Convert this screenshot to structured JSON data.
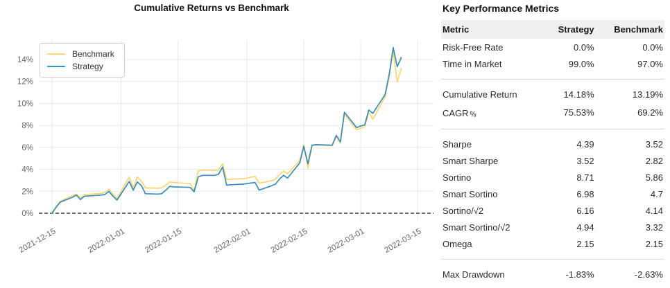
{
  "chart": {
    "title": "Cumulative Returns vs Benchmark",
    "legend": [
      {
        "label": "Benchmark",
        "color": "#fcd66a"
      },
      {
        "label": "Strategy",
        "color": "#348dc1"
      }
    ]
  },
  "chart_data": {
    "type": "line",
    "title": "Cumulative Returns vs Benchmark",
    "xlabel": "",
    "ylabel": "",
    "grid": true,
    "legend_position": "upper-left",
    "ylim": [
      -0.65,
      15.77
    ],
    "y_ticks": [
      0,
      2,
      4,
      6,
      8,
      10,
      12,
      14
    ],
    "y_tick_suffix": "%",
    "x_ticks": [
      "2021-12-15",
      "2022-01-01",
      "2022-01-15",
      "2022-02-01",
      "2022-02-15",
      "2022-03-01",
      "2022-03-15"
    ],
    "zero_line": "dashed-black",
    "x": [
      "2021-12-15",
      "2021-12-16",
      "2021-12-17",
      "2021-12-20",
      "2021-12-21",
      "2021-12-22",
      "2021-12-23",
      "2021-12-27",
      "2021-12-28",
      "2021-12-29",
      "2021-12-30",
      "2021-12-31",
      "2022-01-03",
      "2022-01-04",
      "2022-01-05",
      "2022-01-06",
      "2022-01-07",
      "2022-01-10",
      "2022-01-11",
      "2022-01-12",
      "2022-01-13",
      "2022-01-14",
      "2022-01-18",
      "2022-01-19",
      "2022-01-20",
      "2022-01-21",
      "2022-01-24",
      "2022-01-25",
      "2022-01-26",
      "2022-01-27",
      "2022-01-28",
      "2022-01-31",
      "2022-02-01",
      "2022-02-02",
      "2022-02-03",
      "2022-02-04",
      "2022-02-07",
      "2022-02-08",
      "2022-02-09",
      "2022-02-10",
      "2022-02-11",
      "2022-02-14",
      "2022-02-15",
      "2022-02-16",
      "2022-02-17",
      "2022-02-18",
      "2022-02-22",
      "2022-02-23",
      "2022-02-24",
      "2022-02-25",
      "2022-02-28",
      "2022-03-01",
      "2022-03-02",
      "2022-03-03",
      "2022-03-04",
      "2022-03-07",
      "2022-03-08",
      "2022-03-09",
      "2022-03-10",
      "2022-03-11"
    ],
    "series": [
      {
        "name": "Benchmark",
        "color": "#fcd66a",
        "values": [
          0.0,
          0.6,
          1.1,
          1.6,
          1.75,
          1.4,
          1.7,
          1.8,
          1.9,
          2.2,
          1.75,
          1.35,
          3.3,
          2.3,
          3.3,
          2.92,
          2.3,
          2.28,
          2.3,
          2.55,
          2.86,
          2.8,
          2.7,
          2.05,
          3.85,
          3.92,
          3.9,
          3.95,
          4.5,
          3.05,
          3.1,
          3.15,
          3.2,
          3.3,
          3.35,
          2.75,
          2.95,
          3.1,
          3.5,
          3.85,
          3.6,
          4.8,
          6.25,
          4.1,
          6.15,
          6.2,
          6.15,
          7.0,
          6.4,
          9.0,
          7.6,
          7.75,
          7.9,
          9.2,
          8.55,
          10.6,
          12.4,
          14.75,
          11.95,
          13.19
        ]
      },
      {
        "name": "Strategy",
        "color": "#348dc1",
        "values": [
          0.0,
          0.55,
          1.0,
          1.45,
          1.65,
          1.25,
          1.55,
          1.65,
          1.7,
          2.0,
          1.55,
          1.2,
          2.9,
          2.1,
          2.85,
          2.52,
          1.78,
          1.75,
          1.78,
          2.1,
          2.45,
          2.4,
          2.35,
          1.95,
          3.3,
          3.45,
          3.45,
          3.55,
          4.2,
          2.55,
          2.6,
          2.65,
          2.7,
          2.75,
          2.8,
          2.1,
          2.5,
          2.65,
          3.1,
          3.45,
          3.2,
          4.6,
          6.1,
          4.5,
          6.2,
          6.25,
          6.2,
          7.1,
          6.5,
          9.2,
          7.8,
          7.95,
          8.05,
          9.4,
          9.1,
          10.8,
          12.6,
          15.1,
          13.35,
          14.18
        ]
      }
    ]
  },
  "metrics_panel": {
    "title": "Key Performance Metrics",
    "columns": [
      "Metric",
      "Strategy",
      "Benchmark"
    ],
    "groups": [
      {
        "rows": [
          {
            "metric": "Risk-Free Rate",
            "strategy": "0.0%",
            "benchmark": "0.0%"
          },
          {
            "metric": "Time in Market",
            "strategy": "99.0%",
            "benchmark": "97.0%"
          }
        ]
      },
      {
        "rows": [
          {
            "metric": "Cumulative Return",
            "strategy": "14.18%",
            "benchmark": "13.19%"
          },
          {
            "metric": "CAGR﹪",
            "strategy": "75.53%",
            "benchmark": "69.2%"
          }
        ]
      },
      {
        "rows": [
          {
            "metric": "Sharpe",
            "strategy": "4.39",
            "benchmark": "3.52"
          },
          {
            "metric": "Smart Sharpe",
            "strategy": "3.52",
            "benchmark": "2.82"
          },
          {
            "metric": "Sortino",
            "strategy": "8.71",
            "benchmark": "5.86"
          },
          {
            "metric": "Smart Sortino",
            "strategy": "6.98",
            "benchmark": "4.7"
          },
          {
            "metric": "Sortino/√2",
            "strategy": "6.16",
            "benchmark": "4.14"
          },
          {
            "metric": "Smart Sortino/√2",
            "strategy": "4.94",
            "benchmark": "3.32"
          },
          {
            "metric": "Omega",
            "strategy": "2.15",
            "benchmark": "2.15"
          }
        ]
      },
      {
        "rows": [
          {
            "metric": "Max Drawdown",
            "strategy": "-1.83%",
            "benchmark": "-2.63%"
          }
        ]
      }
    ]
  },
  "colors": {
    "grid": "#e7e7e7",
    "zero_line": "#111111",
    "tick_text": "#666666",
    "header_bg": "#f0f0f0",
    "separator": "#d9d9d9"
  }
}
